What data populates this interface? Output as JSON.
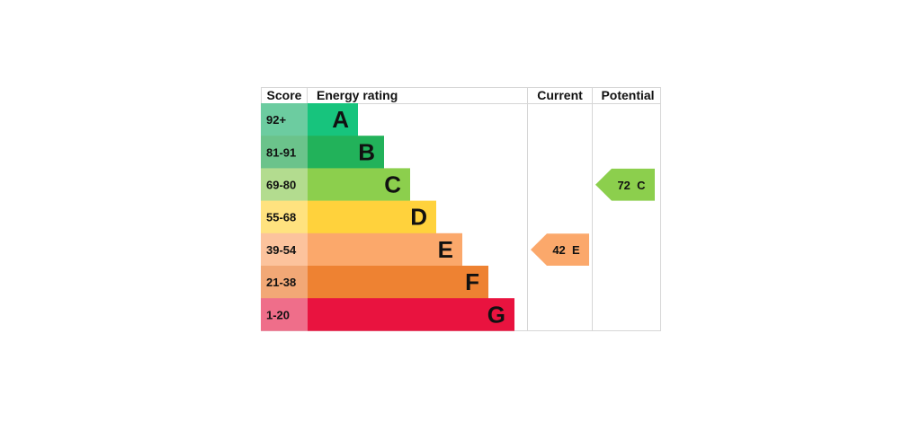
{
  "headers": {
    "score": "Score",
    "rating": "Energy rating",
    "current": "Current",
    "potential": "Potential"
  },
  "chart_data": {
    "type": "bar",
    "bands": [
      {
        "letter": "A",
        "range": "92+",
        "min": 92,
        "max": 100,
        "color": "#17c47d",
        "score_color": "#6ccca0"
      },
      {
        "letter": "B",
        "range": "81-91",
        "min": 81,
        "max": 91,
        "color": "#22b25a",
        "score_color": "#6bc38b"
      },
      {
        "letter": "C",
        "range": "69-80",
        "min": 69,
        "max": 80,
        "color": "#8ccf4d",
        "score_color": "#b3dc8f"
      },
      {
        "letter": "D",
        "range": "55-68",
        "min": 55,
        "max": 68,
        "color": "#ffd23c",
        "score_color": "#ffe27f"
      },
      {
        "letter": "E",
        "range": "39-54",
        "min": 39,
        "max": 54,
        "color": "#fba86b",
        "score_color": "#fcc39d"
      },
      {
        "letter": "F",
        "range": "21-38",
        "min": 21,
        "max": 38,
        "color": "#ee8232",
        "score_color": "#f2a876"
      },
      {
        "letter": "G",
        "range": "1-20",
        "min": 1,
        "max": 20,
        "color": "#e9133f",
        "score_color": "#ef6e8a"
      }
    ],
    "current": {
      "score": 42,
      "letter": "E",
      "label": "42  E",
      "color": "#fba86b"
    },
    "potential": {
      "score": 72,
      "letter": "C",
      "label": "72  C",
      "color": "#8ccf4d"
    }
  }
}
